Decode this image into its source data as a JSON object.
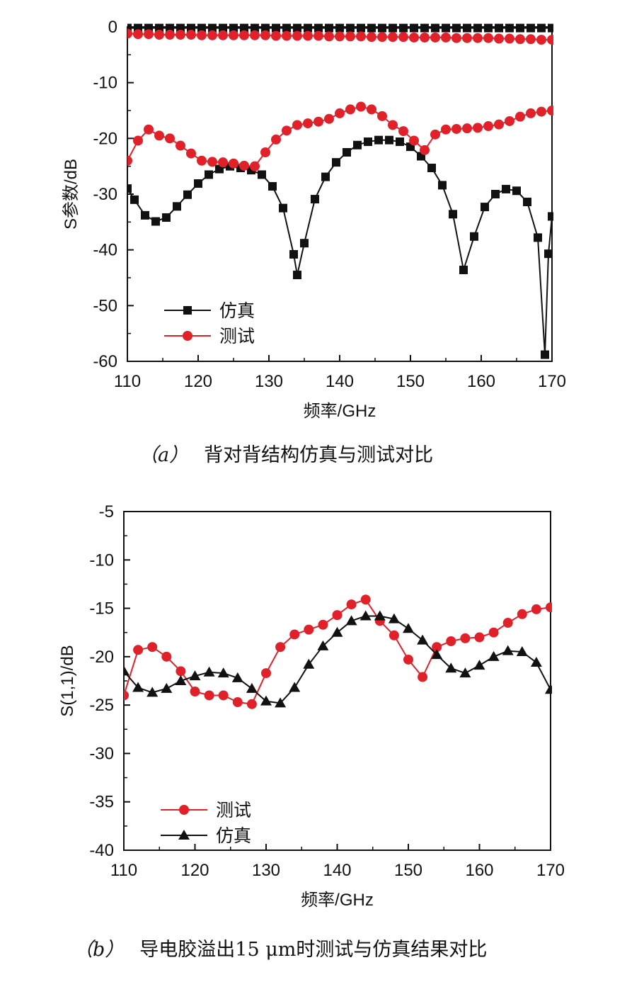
{
  "charts": {
    "a": {
      "caption_tag": "（a）",
      "caption": "背对背结构仿真与测试对比",
      "chart_data": {
        "type": "line",
        "xlabel": "频率/GHz",
        "ylabel": "S参数/dB",
        "xlim": [
          110,
          170
        ],
        "ylim": [
          -60,
          0
        ],
        "xticks": [
          "110",
          "120",
          "130",
          "140",
          "150",
          "160",
          "170"
        ],
        "yticks": [
          "0",
          "-10",
          "-20",
          "-30",
          "-40",
          "-50",
          "-60"
        ],
        "legend_position": "bottom-left",
        "series": [
          {
            "name": "仿真",
            "color": "#111111",
            "marker": "square",
            "x": [
              110,
              111.5,
              113,
              114.5,
              116,
              117.5,
              119,
              120.5,
              122,
              123.5,
              125,
              126.5,
              128,
              129.5,
              131,
              132.5,
              134,
              135.5,
              137,
              138.5,
              140,
              141.5,
              143,
              144.5,
              146,
              147.5,
              149,
              150.5,
              152,
              153.5,
              155,
              156.5,
              158,
              159.5,
              161,
              162.5,
              164,
              165.5,
              167,
              168.5,
              170
            ],
            "y": [
              -0.2,
              -0.2,
              -0.2,
              -0.2,
              -0.2,
              -0.2,
              -0.2,
              -0.2,
              -0.2,
              -0.2,
              -0.2,
              -0.2,
              -0.2,
              -0.2,
              -0.2,
              -0.2,
              -0.2,
              -0.2,
              -0.2,
              -0.2,
              -0.2,
              -0.2,
              -0.2,
              -0.2,
              -0.2,
              -0.2,
              -0.2,
              -0.2,
              -0.2,
              -0.2,
              -0.2,
              -0.2,
              -0.2,
              -0.2,
              -0.2,
              -0.2,
              -0.2,
              -0.2,
              -0.2,
              -0.2,
              -0.2
            ]
          },
          {
            "name": "",
            "color": "#111111",
            "marker": "square",
            "x": [
              110,
              111,
              112.5,
              114,
              115.5,
              117,
              118.5,
              120,
              121.5,
              123,
              124.5,
              126,
              127.5,
              129,
              130.5,
              132,
              133.5,
              134,
              135,
              136.5,
              138,
              139.5,
              141,
              142.5,
              144,
              145.5,
              147,
              148.5,
              150,
              151.5,
              153,
              154.5,
              156,
              157.5,
              159,
              160.5,
              162,
              163.5,
              165,
              166.5,
              168,
              169,
              169.5,
              170
            ],
            "y": [
              -29,
              -31,
              -33.8,
              -34.9,
              -34.2,
              -32.2,
              -30.1,
              -28.1,
              -26.5,
              -25.5,
              -25,
              -25.3,
              -25.7,
              -26.5,
              -28.6,
              -32.5,
              -40.8,
              -44.5,
              -38.8,
              -30.9,
              -26.9,
              -24.3,
              -22.5,
              -21.2,
              -20.6,
              -20.3,
              -20.3,
              -20.6,
              -21.5,
              -23.2,
              -25.3,
              -28.4,
              -33.6,
              -43.6,
              -37.6,
              -32.3,
              -30,
              -29.1,
              -29.4,
              -31.4,
              -37.8,
              -58.8,
              -40.7,
              -34
            ]
          },
          {
            "name": "测试",
            "color": "#e0212a",
            "marker": "circle",
            "x": [
              110,
              111.5,
              113,
              114.5,
              116,
              117.5,
              119,
              120.5,
              122,
              123.5,
              125,
              126.5,
              128,
              129.5,
              131,
              132.5,
              134,
              135.5,
              137,
              138.5,
              140,
              141.5,
              143,
              144.5,
              146,
              147.5,
              149,
              150.5,
              152,
              153.5,
              155,
              156.5,
              158,
              159.5,
              161,
              162.5,
              164,
              165.5,
              167,
              168.5,
              170
            ],
            "y": [
              -1.2,
              -1.3,
              -1.3,
              -1.4,
              -1.4,
              -1.4,
              -1.4,
              -1.5,
              -1.5,
              -1.5,
              -1.5,
              -1.5,
              -1.5,
              -1.5,
              -1.6,
              -1.6,
              -1.6,
              -1.6,
              -1.6,
              -1.7,
              -1.7,
              -1.7,
              -1.7,
              -1.8,
              -1.8,
              -1.8,
              -1.8,
              -1.9,
              -1.9,
              -1.9,
              -1.9,
              -2,
              -2,
              -2,
              -2,
              -2.1,
              -2.1,
              -2.2,
              -2.2,
              -2.3,
              -2.3
            ]
          },
          {
            "name": "",
            "color": "#e0212a",
            "marker": "circle",
            "x": [
              110,
              111.5,
              113,
              114.5,
              116,
              117.5,
              119,
              120.5,
              122,
              123.5,
              125,
              126.5,
              128,
              129.5,
              131,
              132.5,
              134,
              135.5,
              137,
              138.5,
              140,
              141.5,
              143,
              144.5,
              146,
              147.5,
              149,
              150.5,
              152,
              153.5,
              155,
              156.5,
              158,
              159.5,
              161,
              162.5,
              164,
              165.5,
              167,
              168.5,
              170
            ],
            "y": [
              -24,
              -20.4,
              -18.4,
              -19.5,
              -20,
              -21.3,
              -22.7,
              -24,
              -24.2,
              -24.3,
              -24.5,
              -24.9,
              -25,
              -22.5,
              -20.2,
              -18.6,
              -17.6,
              -17.3,
              -17,
              -16.5,
              -15.5,
              -14.8,
              -14.3,
              -14.8,
              -16,
              -17.6,
              -18.7,
              -20.4,
              -22.1,
              -19.3,
              -18.4,
              -18.3,
              -18.2,
              -18.1,
              -17.8,
              -17.5,
              -16.9,
              -16.1,
              -15.5,
              -15.2,
              -15
            ]
          }
        ]
      }
    },
    "b": {
      "caption_tag": "（b）",
      "caption": "导电胶溢出15 μm时测试与仿真结果对比",
      "chart_data": {
        "type": "line",
        "xlabel": "频率/GHz",
        "ylabel": "S(1,1)/dB",
        "xlim": [
          110,
          170
        ],
        "ylim": [
          -40,
          -5
        ],
        "xticks": [
          "110",
          "120",
          "130",
          "140",
          "150",
          "160",
          "170"
        ],
        "yticks": [
          "-5",
          "-10",
          "-15",
          "-20",
          "-25",
          "-30",
          "-35",
          "-40"
        ],
        "legend_position": "bottom-left",
        "series": [
          {
            "name": "测试",
            "color": "#e0212a",
            "marker": "circle",
            "x": [
              110,
              112,
              114,
              116,
              118,
              120,
              122,
              124,
              126,
              128,
              130,
              132,
              134,
              136,
              138,
              140,
              142,
              144,
              146,
              148,
              150,
              152,
              154,
              156,
              158,
              160,
              162,
              164,
              166,
              168,
              170
            ],
            "y": [
              -24,
              -19.3,
              -19,
              -20,
              -21.5,
              -23.6,
              -24,
              -24,
              -24.7,
              -24.9,
              -21.7,
              -19,
              -17.7,
              -17.2,
              -16.7,
              -15.7,
              -14.6,
              -14.1,
              -16.3,
              -17.8,
              -20.3,
              -22.1,
              -19,
              -18.4,
              -18.1,
              -18,
              -17.5,
              -16.5,
              -15.6,
              -15.1,
              -14.9
            ]
          },
          {
            "name": "仿真",
            "color": "#111111",
            "marker": "triangle",
            "x": [
              110,
              112,
              114,
              116,
              118,
              120,
              122,
              124,
              126,
              128,
              130,
              132,
              134,
              136,
              138,
              140,
              142,
              144,
              146,
              148,
              150,
              152,
              154,
              156,
              158,
              160,
              162,
              164,
              166,
              168,
              170
            ],
            "y": [
              -21.5,
              -23.2,
              -23.7,
              -23.3,
              -22.5,
              -22,
              -21.6,
              -21.7,
              -22.2,
              -23.3,
              -24.6,
              -24.8,
              -23.2,
              -20.8,
              -18.9,
              -17.5,
              -16.3,
              -15.8,
              -15.8,
              -16.1,
              -17.1,
              -18.3,
              -19.8,
              -21.2,
              -21.7,
              -20.9,
              -20,
              -19.4,
              -19.5,
              -20.6,
              -23.4
            ]
          }
        ]
      }
    }
  }
}
